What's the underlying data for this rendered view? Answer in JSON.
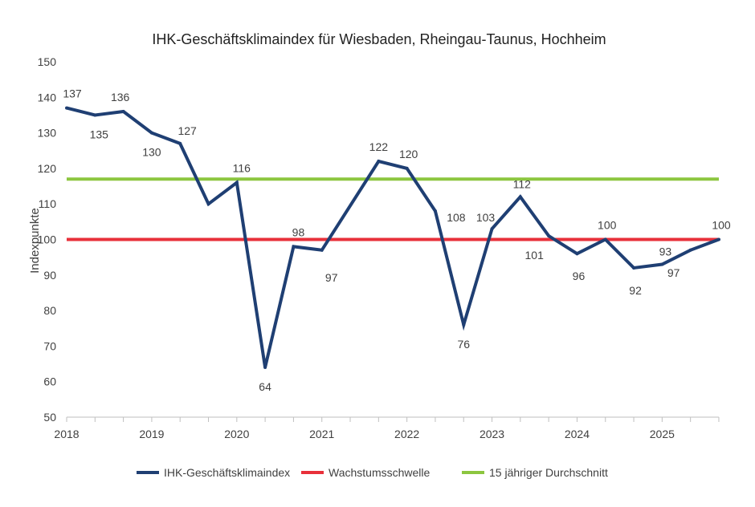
{
  "chart_data": {
    "type": "line",
    "title": "IHK-Geschäftsklimaindex für Wiesbaden, Rheingau-Taunus, Hochheim",
    "xlabel": "",
    "ylabel": "Indexpunkte",
    "ylim": [
      50,
      150
    ],
    "xlim": [
      2018,
      2025.667
    ],
    "yticks": [
      "50",
      "60",
      "70",
      "80",
      "90",
      "100",
      "110",
      "120",
      "130",
      "140",
      "150"
    ],
    "xticks": [
      "2018",
      "2019",
      "2020",
      "2021",
      "2022",
      "2023",
      "2024",
      "2025"
    ],
    "grid": false,
    "legend_position": "bottom",
    "series": [
      {
        "name": "IHK-Geschäftsklimaindex",
        "color": "#1f3f73",
        "x": [
          2018,
          2018.333,
          2018.667,
          2019,
          2019.333,
          2019.667,
          2020,
          2020.333,
          2020.667,
          2021,
          2021.667,
          2022,
          2022.333,
          2022.667,
          2023,
          2023.333,
          2023.667,
          2024,
          2024.333,
          2024.667,
          2025,
          2025.333,
          2025.667
        ],
        "values": [
          137,
          135,
          136,
          130,
          127,
          110,
          116,
          64,
          98,
          97,
          122,
          120,
          108,
          76,
          103,
          112,
          101,
          96,
          100,
          92,
          93,
          97,
          100
        ],
        "labels": [
          "137",
          "135",
          "136",
          "130",
          "127",
          "",
          "116",
          "64",
          "98",
          "97",
          "122",
          "120",
          "108",
          "76",
          "103",
          "112",
          "101",
          "96",
          "100",
          "92",
          "93",
          "97",
          "100"
        ]
      },
      {
        "name": "Wachstumsschwelle",
        "color": "#e8303a",
        "value": 100
      },
      {
        "name": "15 jähriger Durchschnitt",
        "color": "#8cc63f",
        "value": 117
      }
    ]
  }
}
